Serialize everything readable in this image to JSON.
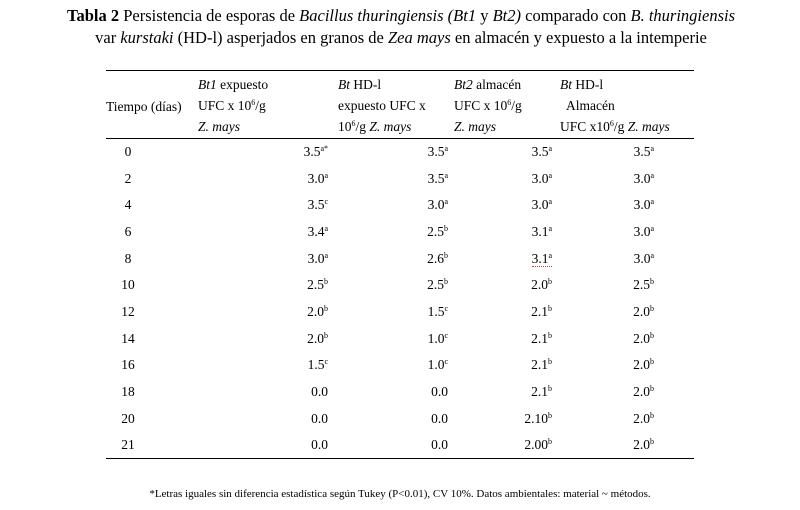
{
  "caption": {
    "lead": "Tabla 2",
    "part1": " Persistencia de esporas de ",
    "species": "Bacillus thuringiensis",
    "part2": " ",
    "strains": "(Bt1",
    "part3": " y ",
    "strain2": "Bt2)",
    "part4": " comparado con ",
    "species_short": "B. thuringiensis",
    "part5": " var ",
    "variety": "kurstaki",
    "part6": " (HD-l) asperjados en  granos de ",
    "crop": "Zea mays",
    "part7": "  en almacén y expuesto a la intemperie"
  },
  "table": {
    "time_header": "Tiempo (días)",
    "headers": [
      {
        "l1_it": "Bt1",
        "l1": " expuesto",
        "l2": "UFC x 10",
        "l2_sup": "6",
        "l2_end": "/g",
        "l3_it": "Z. mays",
        "l3": ""
      },
      {
        "l1_it": "Bt",
        "l1": " HD-l",
        "l2": "expuesto UFC x",
        "l2_sup": "",
        "l2_end": "",
        "l3_pre": "10",
        "l3_sup": "6",
        "l3_mid": "/g ",
        "l3_it": "Z. mays"
      },
      {
        "l1_it": "Bt2",
        "l1": "  almacén",
        "l2": "UFC x 10",
        "l2_sup": "6",
        "l2_end": "/g",
        "l3_it": "Z. mays",
        "l3": ""
      },
      {
        "l1_it": "Bt",
        "l1": " HD-l",
        "l2": "  Almacén",
        "l2_sup": "",
        "l2_end": "",
        "l3_pre": "UFC x10",
        "l3_sup": "6",
        "l3_mid": "/g ",
        "l3_it": "Z. mays"
      }
    ],
    "rows": [
      {
        "t": "0",
        "a": "3.5",
        "as": "a*",
        "b": "3.5",
        "bs": "a",
        "c": "3.5",
        "cs": "a",
        "d": "3.5",
        "ds": "a"
      },
      {
        "t": "2",
        "a": "3.0",
        "as": "a",
        "b": "3.5",
        "bs": "a",
        "c": "3.0",
        "cs": "a",
        "d": "3.0",
        "ds": "a"
      },
      {
        "t": "4",
        "a": "3.5",
        "as": "c",
        "b": "3.0",
        "bs": "a",
        "c": "3.0",
        "cs": "a",
        "d": "3.0",
        "ds": "a"
      },
      {
        "t": "6",
        "a": "3.4",
        "as": "a",
        "b": "2.5",
        "bs": "b",
        "c": "3.1",
        "cs": "a",
        "d": "3.0",
        "ds": "a"
      },
      {
        "t": "8",
        "a": "3.0",
        "as": "a",
        "b": "2.6",
        "bs": "b",
        "c": "3.1",
        "cs": "a",
        "d": "3.0",
        "ds": "a"
      },
      {
        "t": "10",
        "a": "2.5",
        "as": "b",
        "b": "2.5",
        "bs": "b",
        "c": "2.0",
        "cs": "b",
        "d": "2.5",
        "ds": "b"
      },
      {
        "t": "12",
        "a": "2.0",
        "as": "b",
        "b": "1.5",
        "bs": "c",
        "c": "2.1",
        "cs": "b",
        "d": "2.0",
        "ds": "b"
      },
      {
        "t": "14",
        "a": "2.0",
        "as": "b",
        "b": "1.0",
        "bs": "c",
        "c": "2.1",
        "cs": "b",
        "d": "2.0",
        "ds": "b"
      },
      {
        "t": "16",
        "a": "1.5",
        "as": "c",
        "b": "1.0",
        "bs": "c",
        "c": "2.1",
        "cs": "b",
        "d": "2.0",
        "ds": "b"
      },
      {
        "t": "18",
        "a": "0.0",
        "as": "",
        "b": "0.0",
        "bs": "",
        "c": "2.1",
        "cs": "b",
        "d": "2.0",
        "ds": "b"
      },
      {
        "t": "20",
        "a": "0.0",
        "as": "",
        "b": "0.0",
        "bs": "",
        "c": "2.10",
        "cs": "b",
        "d": "2.0",
        "ds": "b"
      },
      {
        "t": "21",
        "a": "0.0",
        "as": "",
        "b": "0.0",
        "bs": "",
        "c": "2.00",
        "cs": "b",
        "d": "2.0",
        "ds": "b"
      }
    ]
  },
  "footnote": "*Letras iguales sin diferencia estadística  según Tukey (P<0.01), CV 10%. Datos ambientales: material ~ métodos."
}
